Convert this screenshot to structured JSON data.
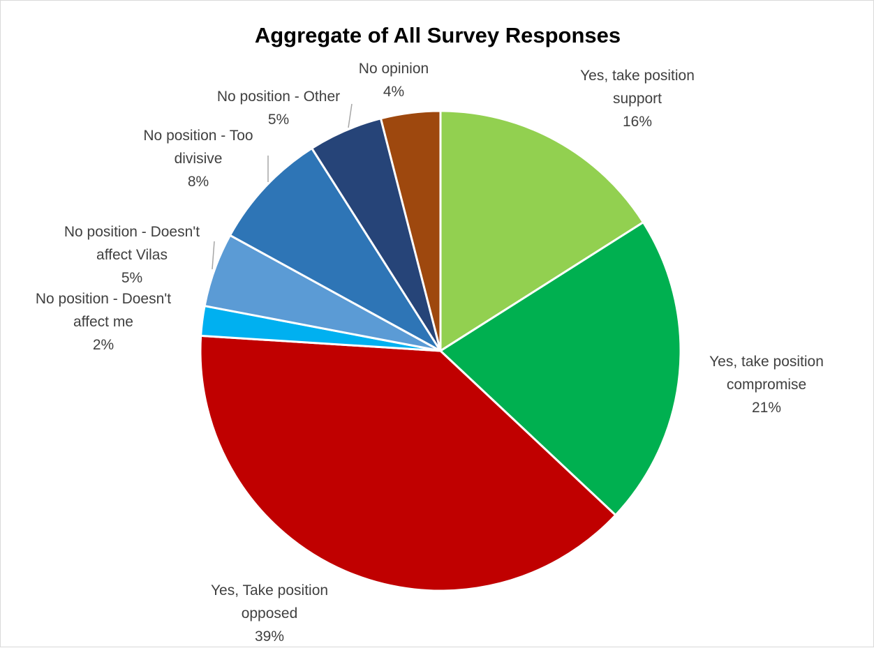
{
  "chart_data": {
    "type": "pie",
    "title": "Aggregate of All Survey Responses",
    "legend": "none",
    "slices": [
      {
        "label_lines": [
          "Yes, take position",
          "support"
        ],
        "value": 16,
        "pct_label": "16%",
        "color": "#92d050"
      },
      {
        "label_lines": [
          "Yes, take position",
          "compromise"
        ],
        "value": 21,
        "pct_label": "21%",
        "color": "#00b050"
      },
      {
        "label_lines": [
          "Yes, Take position",
          "opposed"
        ],
        "value": 39,
        "pct_label": "39%",
        "color": "#c00000"
      },
      {
        "label_lines": [
          "No position - Doesn't",
          "affect me"
        ],
        "value": 2,
        "pct_label": "2%",
        "color": "#00b0f0"
      },
      {
        "label_lines": [
          "No position - Doesn't",
          "affect Vilas"
        ],
        "value": 5,
        "pct_label": "5%",
        "color": "#5b9bd5"
      },
      {
        "label_lines": [
          "No position - Too",
          "divisive"
        ],
        "value": 8,
        "pct_label": "8%",
        "color": "#2e75b6"
      },
      {
        "label_lines": [
          "No position - Other"
        ],
        "value": 5,
        "pct_label": "5%",
        "color": "#264478"
      },
      {
        "label_lines": [
          "No opinion"
        ],
        "value": 4,
        "pct_label": "4%",
        "color": "#9e480e"
      }
    ]
  }
}
